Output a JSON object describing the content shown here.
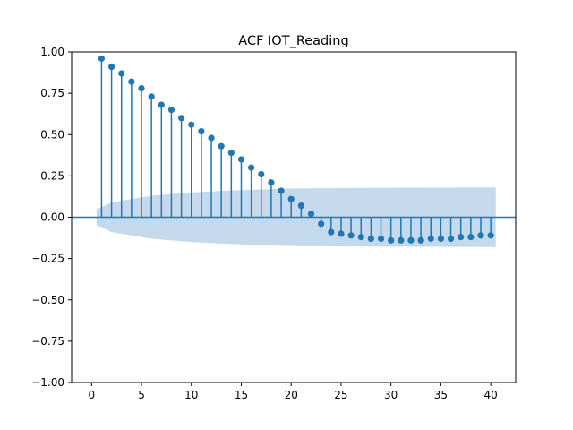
{
  "chart_data": {
    "type": "stem",
    "title": "ACF IOT_Reading",
    "xlabel": "",
    "ylabel": "",
    "xlim": [
      -2,
      42.5
    ],
    "ylim": [
      -1.0,
      1.0
    ],
    "x_ticks": [
      0,
      5,
      10,
      15,
      20,
      25,
      30,
      35,
      40
    ],
    "y_ticks": [
      1.0,
      0.75,
      0.5,
      0.25,
      0.0,
      -0.25,
      -0.5,
      -0.75,
      -1.0
    ],
    "x_tick_labels": [
      "0",
      "5",
      "10",
      "15",
      "20",
      "25",
      "30",
      "35",
      "40"
    ],
    "y_tick_labels": [
      "1.00",
      "0.75",
      "0.50",
      "0.25",
      "0.00",
      "−0.25",
      "−0.50",
      "−0.75",
      "−1.00"
    ],
    "lags": [
      1,
      2,
      3,
      4,
      5,
      6,
      7,
      8,
      9,
      10,
      11,
      12,
      13,
      14,
      15,
      16,
      17,
      18,
      19,
      20,
      21,
      22,
      23,
      24,
      25,
      26,
      27,
      28,
      29,
      30,
      31,
      32,
      33,
      34,
      35,
      36,
      37,
      38,
      39,
      40
    ],
    "values": [
      0.96,
      0.91,
      0.87,
      0.82,
      0.78,
      0.73,
      0.68,
      0.65,
      0.6,
      0.56,
      0.52,
      0.48,
      0.43,
      0.39,
      0.35,
      0.3,
      0.26,
      0.21,
      0.16,
      0.11,
      0.07,
      0.02,
      -0.04,
      -0.09,
      -0.1,
      -0.11,
      -0.12,
      -0.13,
      -0.13,
      -0.14,
      -0.14,
      -0.14,
      -0.14,
      -0.13,
      -0.13,
      -0.13,
      -0.12,
      -0.12,
      -0.11,
      -0.11
    ],
    "confidence_band": {
      "x": [
        0.5,
        1,
        2,
        3,
        4,
        5,
        6,
        7,
        8,
        9,
        10,
        11,
        12,
        13,
        14,
        15,
        16,
        17,
        18,
        19,
        20,
        21,
        22,
        23,
        24,
        25,
        30,
        35,
        40,
        40.5
      ],
      "upper": [
        0.05,
        0.06,
        0.09,
        0.1,
        0.11,
        0.12,
        0.13,
        0.135,
        0.14,
        0.145,
        0.15,
        0.153,
        0.156,
        0.159,
        0.162,
        0.164,
        0.166,
        0.168,
        0.17,
        0.172,
        0.174,
        0.175,
        0.175,
        0.176,
        0.176,
        0.177,
        0.178,
        0.179,
        0.18,
        0.18
      ]
    },
    "colors": {
      "stem": "#1f77b4",
      "band": "#c5d9ec",
      "zero_line": "#1f77b4"
    },
    "grid": false,
    "legend": "none"
  }
}
